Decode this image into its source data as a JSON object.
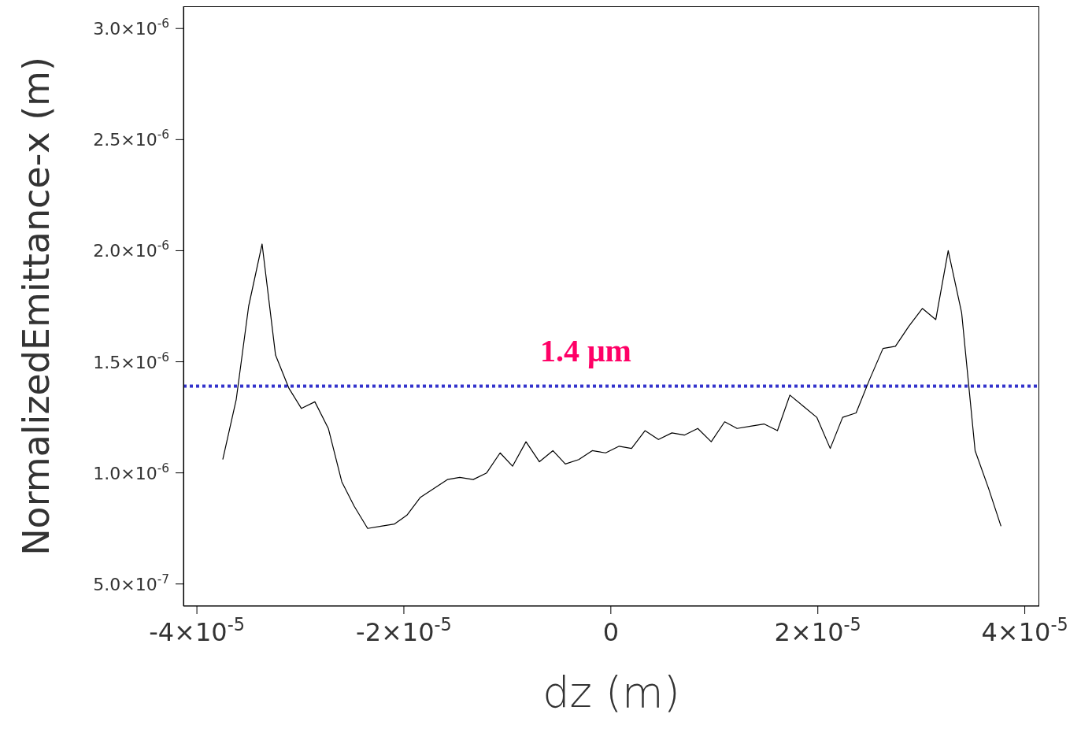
{
  "chart_data": {
    "type": "line",
    "xlabel": "dz  (m)",
    "ylabel": "NormalizedEmittance-x  (m)",
    "x": [
      -3.75e-05,
      -3.62e-05,
      -3.5e-05,
      -3.37e-05,
      -3.24e-05,
      -3.11e-05,
      -2.99e-05,
      -2.86e-05,
      -2.73e-05,
      -2.6e-05,
      -2.48e-05,
      -2.35e-05,
      -2.22e-05,
      -2.09e-05,
      -1.97e-05,
      -1.84e-05,
      -1.71e-05,
      -1.58e-05,
      -1.46e-05,
      -1.33e-05,
      -1.2e-05,
      -1.07e-05,
      -9.5e-06,
      -8.2e-06,
      -6.9e-06,
      -5.6e-06,
      -4.4e-06,
      -3.1e-06,
      -1.8e-06,
      -5e-07,
      8e-07,
      2e-06,
      3.3e-06,
      4.6e-06,
      5.9e-06,
      7.1e-06,
      8.4e-06,
      9.7e-06,
      1.1e-05,
      1.22e-05,
      1.35e-05,
      1.48e-05,
      1.61e-05,
      1.73e-05,
      1.86e-05,
      1.99e-05,
      2.12e-05,
      2.24e-05,
      2.37e-05,
      2.5e-05,
      2.63e-05,
      2.75e-05,
      2.88e-05,
      3.01e-05,
      3.14e-05,
      3.26e-05,
      3.39e-05,
      3.52e-05,
      3.65e-05,
      3.77e-05
    ],
    "values": [
      1.06e-06,
      1.33e-06,
      1.75e-06,
      2.03e-06,
      1.53e-06,
      1.38e-06,
      1.29e-06,
      1.32e-06,
      1.2e-06,
      9.6e-07,
      8.5e-07,
      7.5e-07,
      7.6e-07,
      7.7e-07,
      8.1e-07,
      8.9e-07,
      9.3e-07,
      9.7e-07,
      9.8e-07,
      9.7e-07,
      1e-06,
      1.09e-06,
      1.03e-06,
      1.14e-06,
      1.05e-06,
      1.1e-06,
      1.04e-06,
      1.06e-06,
      1.1e-06,
      1.09e-06,
      1.12e-06,
      1.11e-06,
      1.19e-06,
      1.15e-06,
      1.18e-06,
      1.17e-06,
      1.2e-06,
      1.14e-06,
      1.23e-06,
      1.2e-06,
      1.21e-06,
      1.22e-06,
      1.19e-06,
      1.35e-06,
      1.3e-06,
      1.25e-06,
      1.11e-06,
      1.25e-06,
      1.27e-06,
      1.42e-06,
      1.56e-06,
      1.57e-06,
      1.66e-06,
      1.74e-06,
      1.69e-06,
      2e-06,
      1.72e-06,
      1.1e-06,
      9.3e-07,
      7.6e-07
    ],
    "color": "#000000",
    "marker": "none",
    "line_style": "solid",
    "xlim": [
      -4.13e-05,
      4.14e-05
    ],
    "xticks": [
      {
        "value": -4e-05,
        "label": "-4×10$^{-5}$"
      },
      {
        "value": -2e-05,
        "label": "-2×10$^{-5}$"
      },
      0,
      {
        "value": 2e-05,
        "label": "2×10$^{-5}$"
      },
      {
        "value": 4e-05,
        "label": "4×10$^{-5}$"
      }
    ],
    "ylim": [
      4e-07,
      3.1e-06
    ],
    "yticks": [
      {
        "value": 5e-07,
        "label": "5.0×10$^{-7}$"
      },
      {
        "value": 1e-06,
        "label": "1.0×10$^{-6}$"
      },
      {
        "value": 1.5e-06,
        "label": "1.5×10$^{-6}$"
      },
      {
        "value": 2e-06,
        "label": "2.0×10$^{-6}$"
      },
      {
        "value": 2.5e-06,
        "label": "2.5×10$^{-6}$"
      },
      {
        "value": 3e-06,
        "label": "3.0×10$^{-6}$"
      }
    ],
    "ref_lines": [
      {
        "axis": "y",
        "value": 1.39e-06,
        "label": "1.4 μm",
        "color": "#3333cc",
        "line_style": "dotted"
      }
    ]
  }
}
